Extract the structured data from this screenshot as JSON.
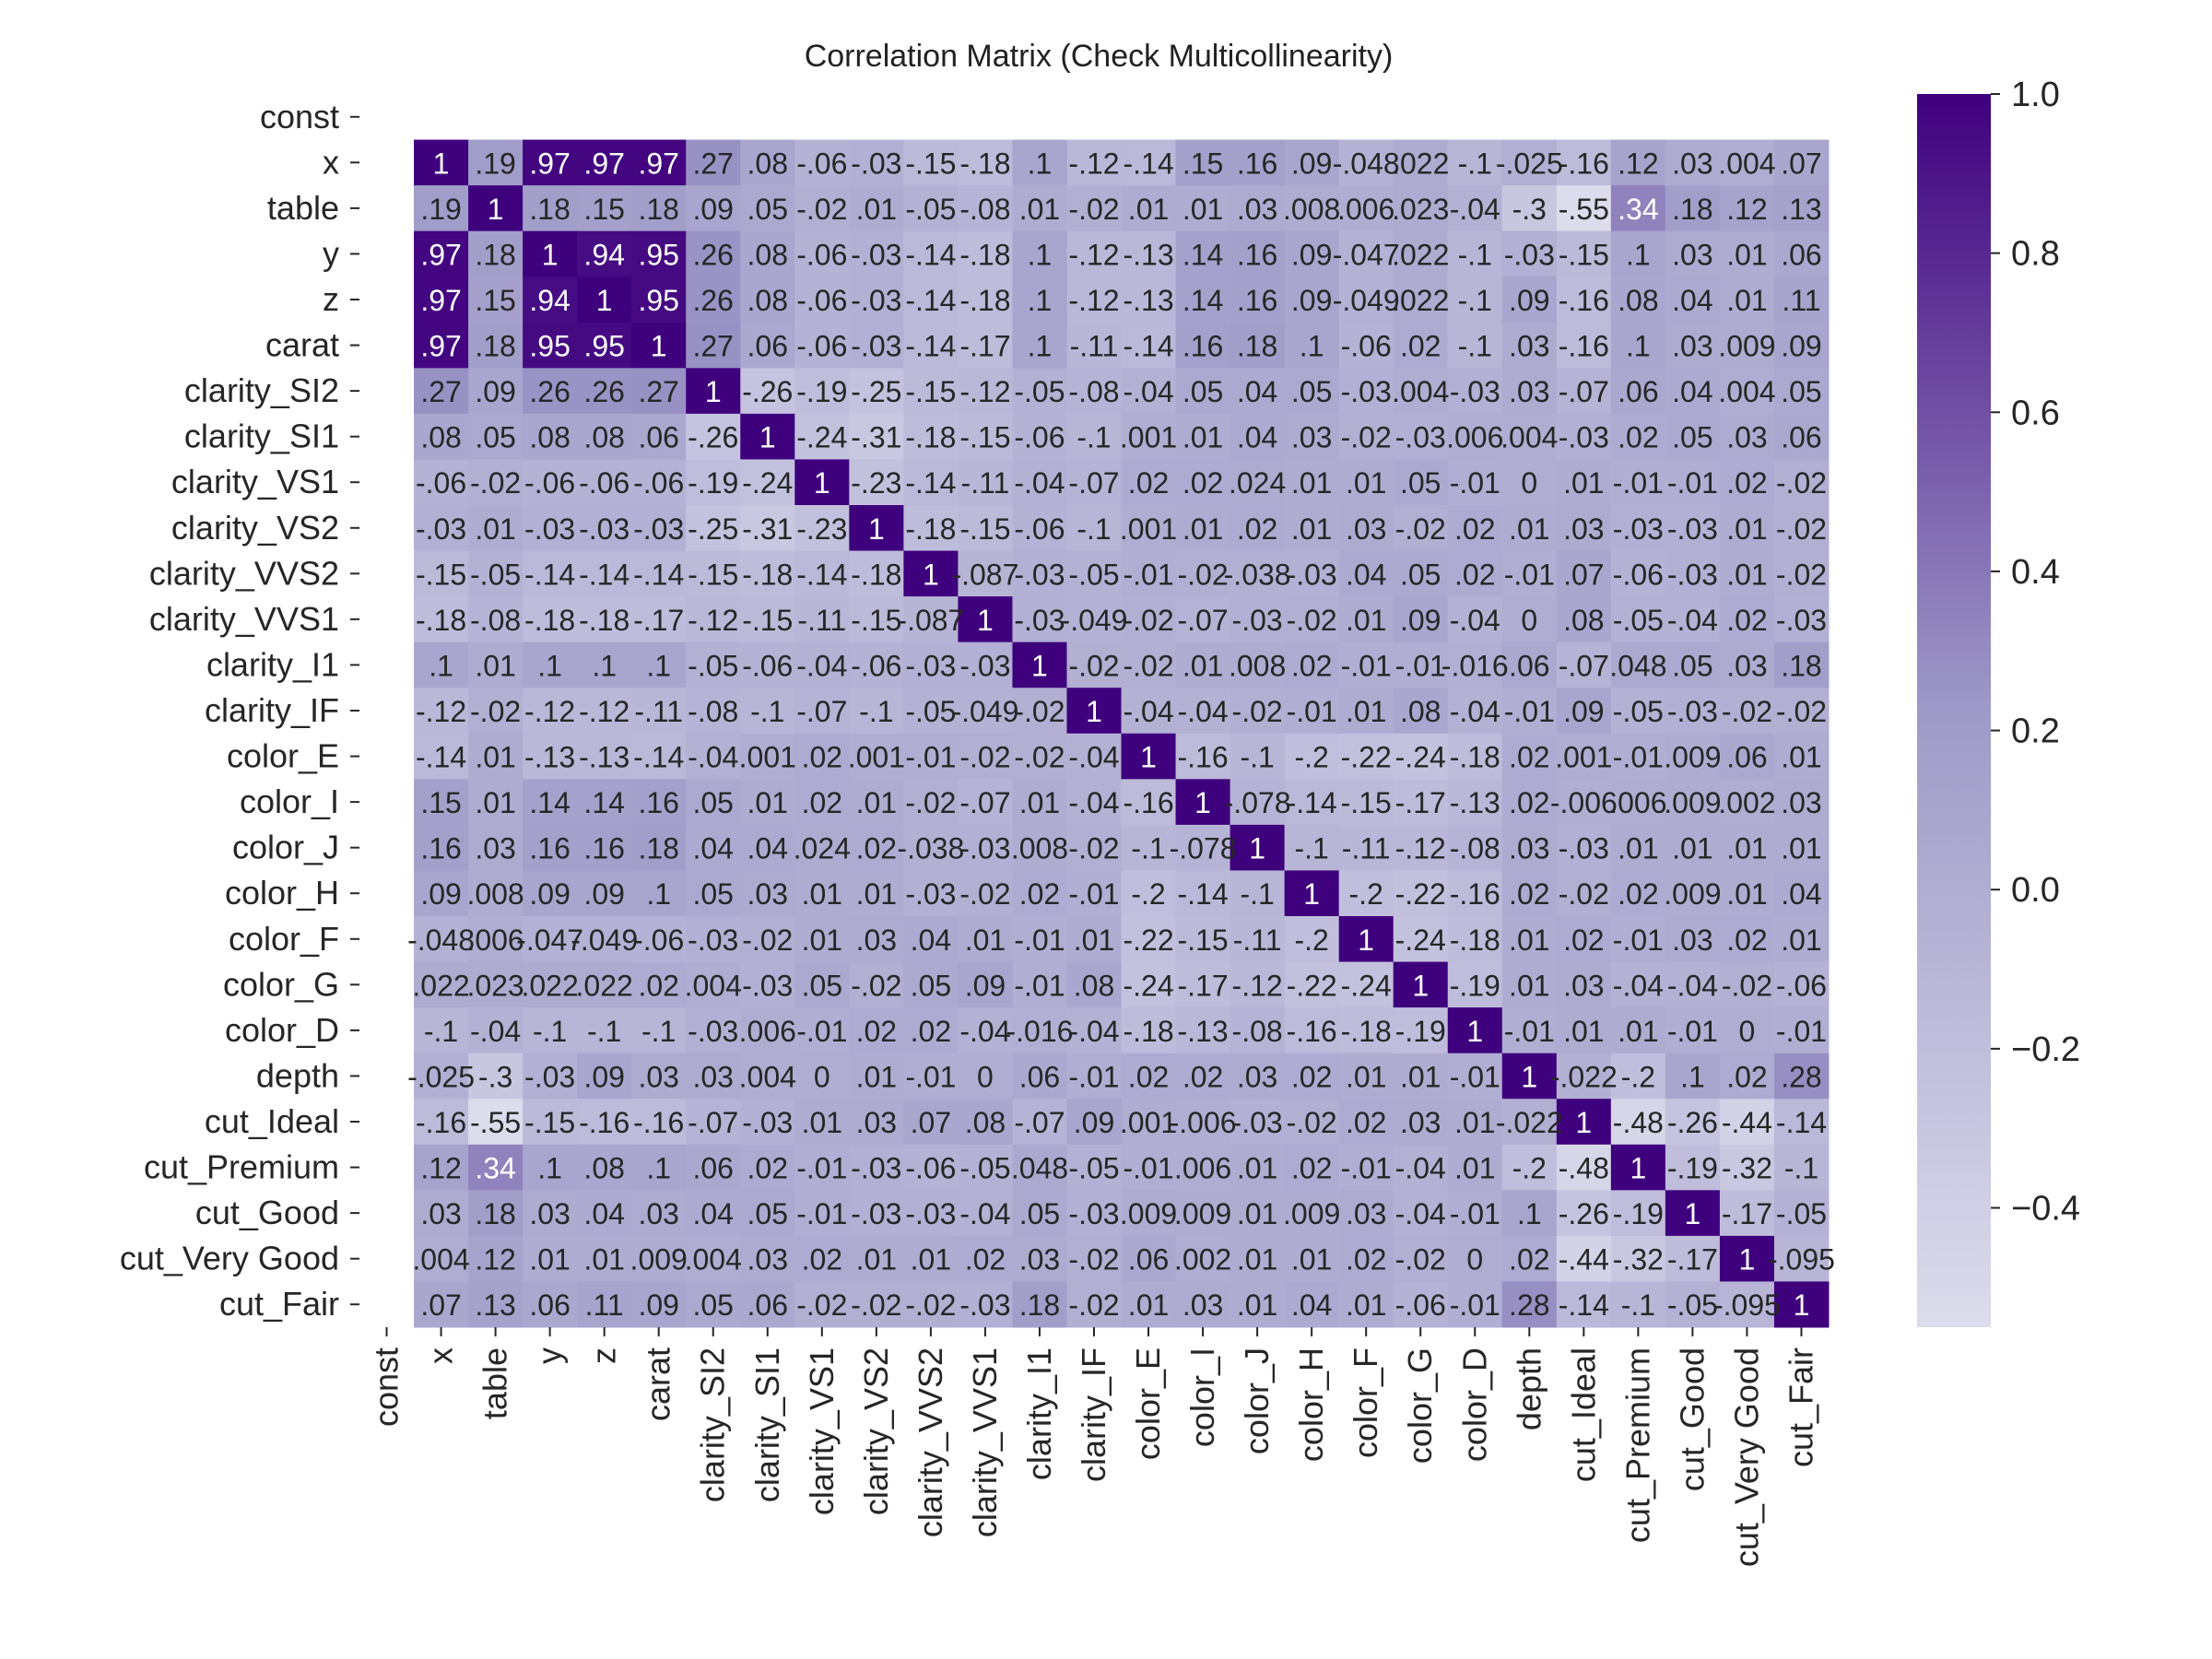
{
  "chart_data": {
    "type": "heatmap",
    "title": "Correlation Matrix (Check Multicollinearity)",
    "variables": [
      "const",
      "x",
      "table",
      "y",
      "z",
      "carat",
      "clarity_SI2",
      "clarity_SI1",
      "clarity_VS1",
      "clarity_VS2",
      "clarity_VVS2",
      "clarity_VVS1",
      "clarity_I1",
      "clarity_IF",
      "color_E",
      "color_I",
      "color_J",
      "color_H",
      "color_F",
      "color_G",
      "color_D",
      "depth",
      "cut_Ideal",
      "cut_Premium",
      "cut_Good",
      "cut_Very Good",
      "cut_Fair"
    ],
    "values": [
      [
        null,
        null,
        null,
        null,
        null,
        null,
        null,
        null,
        null,
        null,
        null,
        null,
        null,
        null,
        null,
        null,
        null,
        null,
        null,
        null,
        null,
        null,
        null,
        null,
        null,
        null,
        null
      ],
      [
        null,
        1,
        0.19,
        0.97,
        0.97,
        0.97,
        0.27,
        0.08,
        -0.06,
        -0.03,
        -0.15,
        -0.18,
        0.1,
        -0.12,
        -0.14,
        0.15,
        0.16,
        0.09,
        -0.048,
        0.022,
        -0.1,
        -0.025,
        -0.16,
        0.12,
        0.03,
        0.004,
        0.07
      ],
      [
        null,
        0.19,
        1,
        0.18,
        0.15,
        0.18,
        0.09,
        0.05,
        -0.02,
        0.01,
        -0.05,
        -0.08,
        0.01,
        -0.02,
        0.01,
        0.01,
        0.03,
        0.008,
        0.006,
        0.023,
        -0.04,
        -0.3,
        -0.55,
        0.34,
        0.18,
        0.12,
        0.13
      ],
      [
        null,
        0.97,
        0.18,
        1,
        0.94,
        0.95,
        0.26,
        0.08,
        -0.06,
        -0.03,
        -0.14,
        -0.18,
        0.1,
        -0.12,
        -0.13,
        0.14,
        0.16,
        0.09,
        -0.047,
        0.022,
        -0.1,
        -0.03,
        -0.15,
        0.1,
        0.03,
        0.01,
        0.06
      ],
      [
        null,
        0.97,
        0.15,
        0.94,
        1,
        0.95,
        0.26,
        0.08,
        -0.06,
        -0.03,
        -0.14,
        -0.18,
        0.1,
        -0.12,
        -0.13,
        0.14,
        0.16,
        0.09,
        -0.049,
        0.022,
        -0.1,
        0.09,
        -0.16,
        0.08,
        0.04,
        0.01,
        0.11
      ],
      [
        null,
        0.97,
        0.18,
        0.95,
        0.95,
        1,
        0.27,
        0.06,
        -0.06,
        -0.03,
        -0.14,
        -0.17,
        0.1,
        -0.11,
        -0.14,
        0.16,
        0.18,
        0.1,
        -0.06,
        0.02,
        -0.1,
        0.03,
        -0.16,
        0.1,
        0.03,
        0.009,
        0.09
      ],
      [
        null,
        0.27,
        0.09,
        0.26,
        0.26,
        0.27,
        1,
        -0.26,
        -0.19,
        -0.25,
        -0.15,
        -0.12,
        -0.05,
        -0.08,
        -0.04,
        0.05,
        0.04,
        0.05,
        -0.03,
        0.004,
        -0.03,
        0.03,
        -0.07,
        0.06,
        0.04,
        0.004,
        0.05
      ],
      [
        null,
        0.08,
        0.05,
        0.08,
        0.08,
        0.06,
        -0.26,
        1,
        -0.24,
        -0.31,
        -0.18,
        -0.15,
        -0.06,
        -0.1,
        0.001,
        0.01,
        0.04,
        0.03,
        -0.02,
        -0.03,
        0.006,
        0.004,
        -0.03,
        0.02,
        0.05,
        0.03,
        0.06
      ],
      [
        null,
        -0.06,
        -0.02,
        -0.06,
        -0.06,
        -0.06,
        -0.19,
        -0.24,
        1,
        -0.23,
        -0.14,
        -0.11,
        -0.04,
        -0.07,
        0.02,
        0.02,
        0.024,
        0.01,
        0.01,
        0.05,
        -0.01,
        0.0,
        0.01,
        -0.01,
        -0.01,
        0.02,
        -0.02
      ],
      [
        null,
        -0.03,
        0.01,
        -0.03,
        -0.03,
        -0.03,
        -0.25,
        -0.31,
        -0.23,
        1,
        -0.18,
        -0.15,
        -0.06,
        -0.1,
        0.001,
        0.01,
        0.02,
        0.01,
        0.03,
        -0.02,
        0.02,
        0.01,
        0.03,
        -0.03,
        -0.03,
        0.01,
        -0.02
      ],
      [
        null,
        -0.15,
        -0.05,
        -0.14,
        -0.14,
        -0.14,
        -0.15,
        -0.18,
        -0.14,
        -0.18,
        1,
        -0.087,
        -0.03,
        -0.05,
        -0.01,
        -0.02,
        -0.038,
        -0.03,
        0.04,
        0.05,
        0.02,
        -0.01,
        0.07,
        -0.06,
        -0.03,
        0.01,
        -0.02
      ],
      [
        null,
        -0.18,
        -0.08,
        -0.18,
        -0.18,
        -0.17,
        -0.12,
        -0.15,
        -0.11,
        -0.15,
        -0.087,
        1,
        -0.03,
        -0.049,
        -0.02,
        -0.07,
        -0.03,
        -0.02,
        0.01,
        0.09,
        -0.04,
        0.0,
        0.08,
        -0.05,
        -0.04,
        0.02,
        -0.03
      ],
      [
        null,
        0.1,
        0.01,
        0.1,
        0.1,
        0.1,
        -0.05,
        -0.06,
        -0.04,
        -0.06,
        -0.03,
        -0.03,
        1,
        -0.02,
        -0.02,
        0.01,
        0.008,
        0.02,
        -0.01,
        -0.01,
        -0.016,
        0.06,
        -0.07,
        0.048,
        0.05,
        0.03,
        0.18
      ],
      [
        null,
        -0.12,
        -0.02,
        -0.12,
        -0.12,
        -0.11,
        -0.08,
        -0.1,
        -0.07,
        -0.1,
        -0.05,
        -0.049,
        -0.02,
        1,
        -0.04,
        -0.04,
        -0.02,
        -0.01,
        0.01,
        0.08,
        -0.04,
        -0.01,
        0.09,
        -0.05,
        -0.03,
        -0.02,
        -0.02
      ],
      [
        null,
        -0.14,
        0.01,
        -0.13,
        -0.13,
        -0.14,
        -0.04,
        0.001,
        0.02,
        0.001,
        -0.01,
        -0.02,
        -0.02,
        -0.04,
        1,
        -0.16,
        -0.1,
        -0.2,
        -0.22,
        -0.24,
        -0.18,
        0.02,
        0.001,
        -0.01,
        0.009,
        0.06,
        0.01
      ],
      [
        null,
        0.15,
        0.01,
        0.14,
        0.14,
        0.16,
        0.05,
        0.01,
        0.02,
        0.01,
        -0.02,
        -0.07,
        0.01,
        -0.04,
        -0.16,
        1,
        -0.078,
        -0.14,
        -0.15,
        -0.17,
        -0.13,
        0.02,
        -0.006,
        0.006,
        0.009,
        0.002,
        0.03
      ],
      [
        null,
        0.16,
        0.03,
        0.16,
        0.16,
        0.18,
        0.04,
        0.04,
        0.024,
        0.02,
        -0.038,
        -0.03,
        0.008,
        -0.02,
        -0.1,
        -0.078,
        1,
        -0.1,
        -0.11,
        -0.12,
        -0.08,
        0.03,
        -0.03,
        0.01,
        0.01,
        0.01,
        0.01
      ],
      [
        null,
        0.09,
        0.008,
        0.09,
        0.09,
        0.1,
        0.05,
        0.03,
        0.01,
        0.01,
        -0.03,
        -0.02,
        0.02,
        -0.01,
        -0.2,
        -0.14,
        -0.1,
        1,
        -0.2,
        -0.22,
        -0.16,
        0.02,
        -0.02,
        0.02,
        0.009,
        0.01,
        0.04
      ],
      [
        null,
        -0.048,
        0.006,
        -0.047,
        -0.049,
        -0.06,
        -0.03,
        -0.02,
        0.01,
        0.03,
        0.04,
        0.01,
        -0.01,
        0.01,
        -0.22,
        -0.15,
        -0.11,
        -0.2,
        1,
        -0.24,
        -0.18,
        0.01,
        0.02,
        -0.01,
        0.03,
        0.02,
        0.01
      ],
      [
        null,
        0.022,
        0.023,
        0.022,
        0.022,
        0.02,
        0.004,
        -0.03,
        0.05,
        -0.02,
        0.05,
        0.09,
        -0.01,
        0.08,
        -0.24,
        -0.17,
        -0.12,
        -0.22,
        -0.24,
        1,
        -0.19,
        0.01,
        0.03,
        -0.04,
        -0.04,
        -0.02,
        -0.06
      ],
      [
        null,
        -0.1,
        -0.04,
        -0.1,
        -0.1,
        -0.1,
        -0.03,
        0.006,
        -0.01,
        0.02,
        0.02,
        -0.04,
        -0.016,
        -0.04,
        -0.18,
        -0.13,
        -0.08,
        -0.16,
        -0.18,
        -0.19,
        1,
        -0.01,
        0.01,
        0.01,
        -0.01,
        0.0,
        -0.01
      ],
      [
        null,
        -0.025,
        -0.3,
        -0.03,
        0.09,
        0.03,
        0.03,
        0.004,
        0.0,
        0.01,
        -0.01,
        0.0,
        0.06,
        -0.01,
        0.02,
        0.02,
        0.03,
        0.02,
        0.01,
        0.01,
        -0.01,
        1,
        -0.022,
        -0.2,
        0.1,
        0.02,
        0.28
      ],
      [
        null,
        -0.16,
        -0.55,
        -0.15,
        -0.16,
        -0.16,
        -0.07,
        -0.03,
        0.01,
        0.03,
        0.07,
        0.08,
        -0.07,
        0.09,
        0.001,
        -0.006,
        -0.03,
        -0.02,
        0.02,
        0.03,
        0.01,
        -0.022,
        1,
        -0.48,
        -0.26,
        -0.44,
        -0.14
      ],
      [
        null,
        0.12,
        0.34,
        0.1,
        0.08,
        0.1,
        0.06,
        0.02,
        -0.01,
        -0.03,
        -0.06,
        -0.05,
        0.048,
        -0.05,
        -0.01,
        0.006,
        0.01,
        0.02,
        -0.01,
        -0.04,
        0.01,
        -0.2,
        -0.48,
        1,
        -0.19,
        -0.32,
        -0.1
      ],
      [
        null,
        0.03,
        0.18,
        0.03,
        0.04,
        0.03,
        0.04,
        0.05,
        -0.01,
        -0.03,
        -0.03,
        -0.04,
        0.05,
        -0.03,
        0.009,
        0.009,
        0.01,
        0.009,
        0.03,
        -0.04,
        -0.01,
        0.1,
        -0.26,
        -0.19,
        1,
        -0.17,
        -0.05
      ],
      [
        null,
        0.004,
        0.12,
        0.01,
        0.01,
        0.009,
        0.004,
        0.03,
        0.02,
        0.01,
        0.01,
        0.02,
        0.03,
        -0.02,
        0.06,
        0.002,
        0.01,
        0.01,
        0.02,
        -0.02,
        0.0,
        0.02,
        -0.44,
        -0.32,
        -0.17,
        1,
        -0.095
      ],
      [
        null,
        0.07,
        0.13,
        0.06,
        0.11,
        0.09,
        0.05,
        0.06,
        -0.02,
        -0.02,
        -0.02,
        -0.03,
        0.18,
        -0.02,
        0.01,
        0.03,
        0.01,
        0.04,
        0.01,
        -0.06,
        -0.01,
        0.28,
        -0.14,
        -0.1,
        -0.05,
        -0.095,
        1
      ]
    ],
    "colorbar": {
      "min": -0.55,
      "max": 1.0,
      "ticks": [
        "1.0",
        "0.8",
        "0.6",
        "0.4",
        "0.2",
        "0.0",
        "−0.2",
        "−0.4"
      ],
      "tick_values": [
        1.0,
        0.8,
        0.6,
        0.4,
        0.2,
        0.0,
        -0.2,
        -0.4
      ],
      "colormap": "Purples",
      "low_color": "#dcdcec",
      "mid_color": "#9e9ac8",
      "high_color": "#3f007d"
    },
    "annotations": true,
    "grid": false
  }
}
